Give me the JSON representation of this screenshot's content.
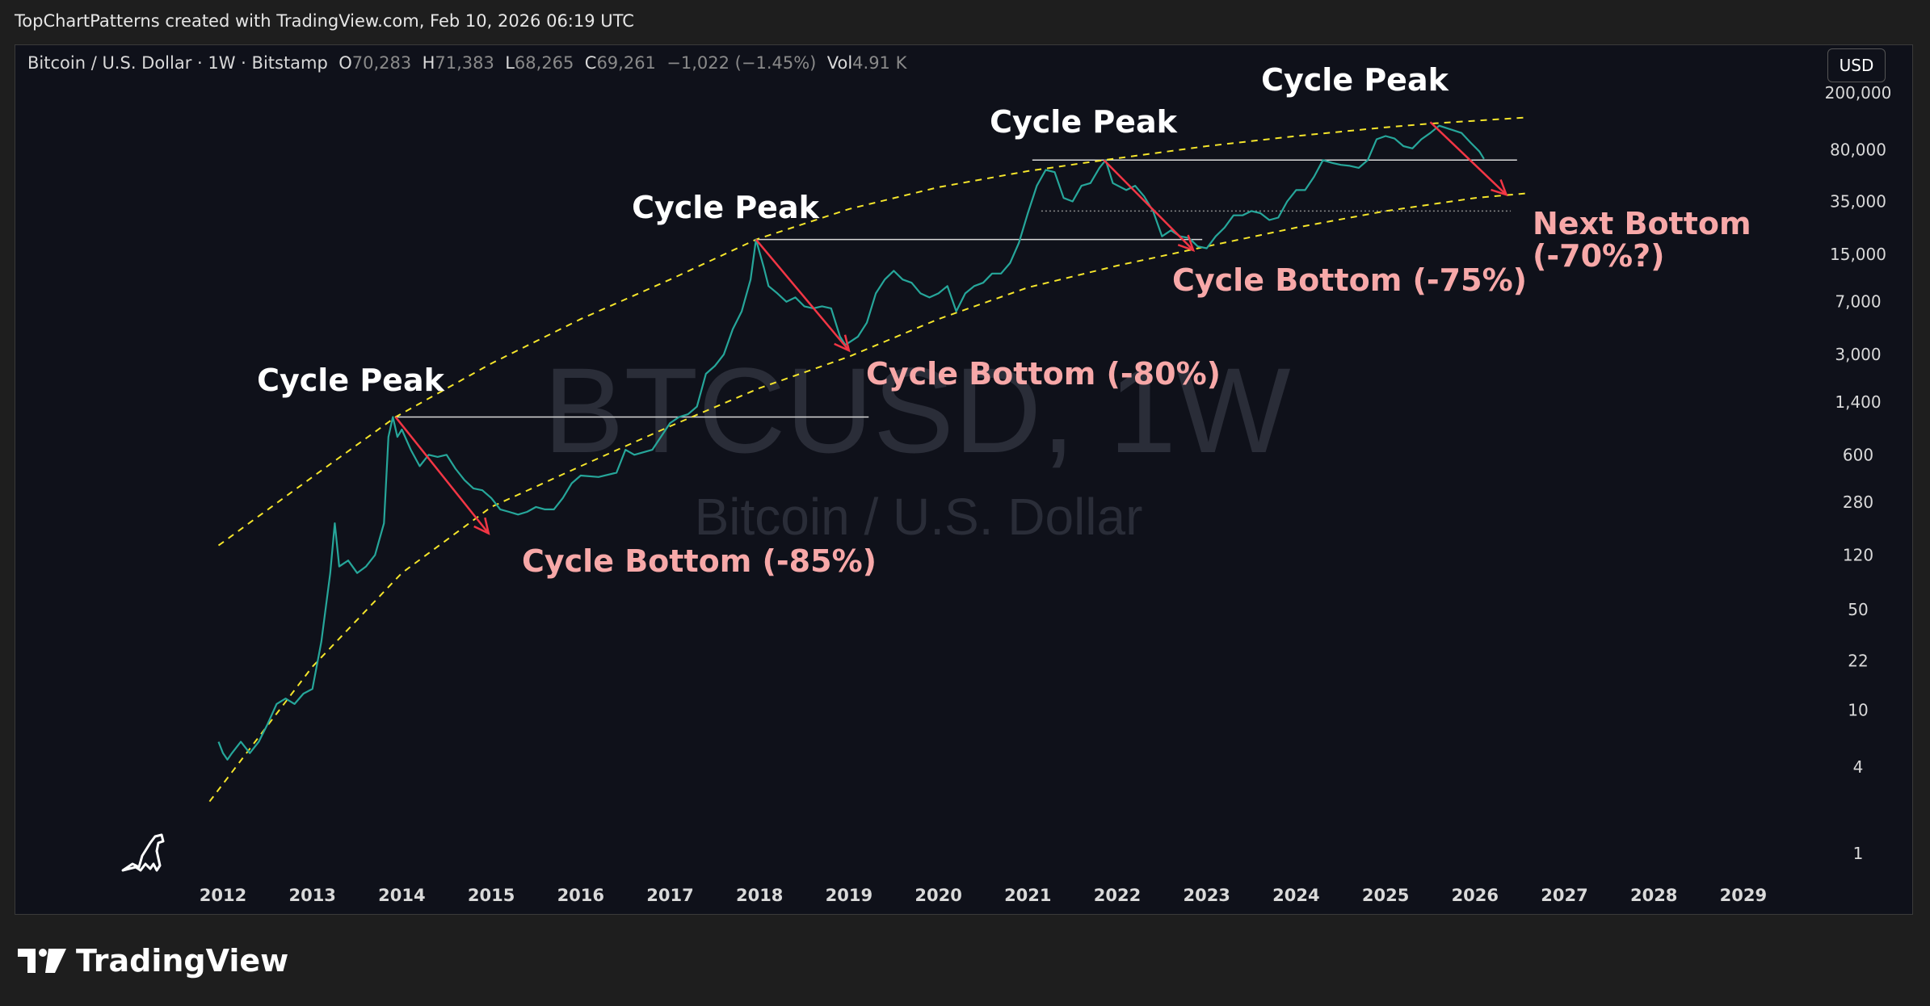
{
  "header": {
    "attribution": "TopChartPatterns created with TradingView.com, Feb 10, 2026 06:19 UTC"
  },
  "legend": {
    "symbol": "Bitcoin / U.S. Dollar · 1W · Bitstamp",
    "open_label": "O",
    "open": "70,283",
    "high_label": "H",
    "high": "71,383",
    "low_label": "L",
    "low": "68,265",
    "close_label": "C",
    "close": "69,261",
    "change": "−1,022 (−1.45%)",
    "vol_label": "Vol",
    "vol": "4.91 K"
  },
  "currency_button": "USD",
  "watermark": {
    "main": "BTCUSD, 1W",
    "sub": "Bitcoin / U.S. Dollar"
  },
  "footer": {
    "brand": "TradingView"
  },
  "colors": {
    "background": "#0f111a",
    "candle": "#26a69a",
    "arrow": "#f23645",
    "band": "#f5e52b",
    "bottom_text": "#f7a8a8"
  },
  "chart_data": {
    "type": "line",
    "y_scale": "log",
    "x_ticks": [
      "2012",
      "2013",
      "2014",
      "2015",
      "2016",
      "2017",
      "2018",
      "2019",
      "2020",
      "2021",
      "2022",
      "2023",
      "2024",
      "2025",
      "2026",
      "2027",
      "2028",
      "2029"
    ],
    "y_ticks": [
      "200,000",
      "80,000",
      "35,000",
      "15,000",
      "7,000",
      "3,000",
      "1,400",
      "600",
      "280",
      "120",
      "50",
      "22",
      "10",
      "4",
      "1"
    ],
    "y_tick_values": [
      200000,
      80000,
      35000,
      15000,
      7000,
      3000,
      1400,
      600,
      280,
      120,
      50,
      22,
      10,
      4,
      1
    ],
    "series": [
      {
        "x": [
          2011.95,
          2012.0,
          2012.05,
          2012.1,
          2012.2,
          2012.3,
          2012.4,
          2012.5,
          2012.6,
          2012.7,
          2012.8,
          2012.9,
          2013.0,
          2013.1,
          2013.2,
          2013.25,
          2013.3,
          2013.4,
          2013.5,
          2013.6,
          2013.7,
          2013.8,
          2013.85,
          2013.9,
          2013.95,
          2014.0,
          2014.1,
          2014.2,
          2014.3,
          2014.4,
          2014.5,
          2014.6,
          2014.7,
          2014.8,
          2014.9,
          2015.0,
          2015.1,
          2015.2,
          2015.3,
          2015.4,
          2015.5,
          2015.6,
          2015.7,
          2015.8,
          2015.9,
          2016.0,
          2016.2,
          2016.4,
          2016.5,
          2016.6,
          2016.8,
          2017.0,
          2017.1,
          2017.2,
          2017.3,
          2017.4,
          2017.5,
          2017.6,
          2017.7,
          2017.8,
          2017.9,
          2017.96,
          2018.05,
          2018.1,
          2018.2,
          2018.3,
          2018.4,
          2018.5,
          2018.6,
          2018.7,
          2018.8,
          2018.9,
          2018.96,
          2019.1,
          2019.2,
          2019.3,
          2019.4,
          2019.5,
          2019.6,
          2019.7,
          2019.8,
          2019.9,
          2020.0,
          2020.1,
          2020.2,
          2020.3,
          2020.4,
          2020.5,
          2020.6,
          2020.7,
          2020.8,
          2020.9,
          2021.0,
          2021.1,
          2021.2,
          2021.3,
          2021.4,
          2021.5,
          2021.6,
          2021.7,
          2021.8,
          2021.87,
          2021.95,
          2022.1,
          2022.2,
          2022.3,
          2022.4,
          2022.5,
          2022.6,
          2022.7,
          2022.8,
          2022.9,
          2023.0,
          2023.1,
          2023.2,
          2023.3,
          2023.4,
          2023.5,
          2023.6,
          2023.7,
          2023.8,
          2023.9,
          2024.0,
          2024.1,
          2024.2,
          2024.3,
          2024.4,
          2024.5,
          2024.6,
          2024.7,
          2024.8,
          2024.9,
          2025.0,
          2025.1,
          2025.2,
          2025.3,
          2025.4,
          2025.5,
          2025.6,
          2025.75,
          2025.85,
          2025.95,
          2026.05,
          2026.1
        ],
        "y": [
          6,
          5,
          4.5,
          5,
          6,
          5,
          6,
          8,
          11,
          12,
          11,
          13,
          14,
          30,
          90,
          200,
          100,
          110,
          90,
          100,
          120,
          200,
          800,
          1100,
          800,
          900,
          650,
          500,
          600,
          580,
          600,
          480,
          400,
          350,
          340,
          300,
          250,
          240,
          230,
          240,
          260,
          250,
          250,
          300,
          380,
          430,
          420,
          450,
          650,
          600,
          650,
          1000,
          1100,
          1150,
          1300,
          2200,
          2500,
          3000,
          4500,
          6000,
          10000,
          19000,
          12000,
          9000,
          8000,
          7000,
          7500,
          6500,
          6300,
          6500,
          6300,
          4000,
          3500,
          4000,
          5000,
          8000,
          10000,
          11500,
          10000,
          9500,
          8000,
          7500,
          8000,
          9000,
          6000,
          8000,
          9000,
          9500,
          11000,
          11000,
          13000,
          18000,
          29000,
          45000,
          58000,
          56000,
          37000,
          35000,
          45000,
          47000,
          60000,
          68000,
          47000,
          42000,
          45000,
          38000,
          30000,
          20000,
          22000,
          20000,
          19500,
          17000,
          16500,
          20000,
          23000,
          28000,
          28000,
          30000,
          29000,
          26000,
          27000,
          35000,
          42000,
          42000,
          52000,
          68000,
          65000,
          63000,
          62000,
          60000,
          68000,
          95000,
          100000,
          96000,
          85000,
          82000,
          95000,
          105000,
          118000,
          110000,
          105000,
          90000,
          78000,
          69261
        ]
      }
    ],
    "annotations": [
      {
        "label": "Cycle Peak",
        "x": 2013.93,
        "y": 1100
      },
      {
        "label": "Cycle Bottom (-85%)",
        "x": 2015.05,
        "y": 170
      },
      {
        "label": "Cycle Peak",
        "x": 2017.96,
        "y": 19000
      },
      {
        "label": "Cycle Bottom (-80%)",
        "x": 2018.96,
        "y": 3200
      },
      {
        "label": "Cycle Peak",
        "x": 2021.85,
        "y": 68000
      },
      {
        "label": "Cycle Bottom (-75%)",
        "x": 2022.85,
        "y": 16000
      },
      {
        "label": "Cycle Peak",
        "x": 2025.5,
        "y": 125000
      },
      {
        "label": "Next Bottom\n(-70%?)",
        "x": 2026.3,
        "y": 37000
      }
    ],
    "bands": [
      {
        "name": "upper",
        "style": "dashed",
        "x": [
          2011.95,
          2013.0,
          2013.93,
          2015.0,
          2016.0,
          2017.0,
          2017.96,
          2019.0,
          2020.0,
          2021.0,
          2021.85,
          2023.0,
          2024.0,
          2025.0,
          2025.5,
          2026.6
        ],
        "y": [
          140,
          420,
          1100,
          2600,
          5300,
          10000,
          19000,
          31000,
          44000,
          57000,
          68000,
          85000,
          100000,
          115000,
          122000,
          135000
        ]
      },
      {
        "name": "lower",
        "style": "dashed",
        "x": [
          2011.85,
          2013.0,
          2014.0,
          2015.0,
          2016.0,
          2017.0,
          2018.0,
          2019.0,
          2020.0,
          2021.0,
          2022.0,
          2023.0,
          2024.0,
          2025.0,
          2026.0,
          2026.6
        ],
        "y": [
          2.3,
          20,
          90,
          260,
          500,
          950,
          1750,
          2900,
          5300,
          8800,
          12500,
          17000,
          23000,
          30000,
          37000,
          40000
        ]
      }
    ],
    "levels": [
      {
        "y": 1100,
        "x0": 2013.93,
        "x1": 2019.22
      },
      {
        "y": 19000,
        "x0": 2017.96,
        "x1": 2022.95
      },
      {
        "y": 68000,
        "x0": 2021.05,
        "x1": 2026.47
      },
      {
        "y": 30000,
        "x0": 2021.15,
        "x1": 2026.4,
        "style": "dotted"
      }
    ],
    "arrows": [
      {
        "x0": 2013.93,
        "y0": 1100,
        "x1": 2014.97,
        "y1": 170
      },
      {
        "x0": 2017.96,
        "y0": 19000,
        "x1": 2019.0,
        "y1": 3200
      },
      {
        "x0": 2021.85,
        "y0": 68000,
        "x1": 2022.85,
        "y1": 16000
      },
      {
        "x0": 2025.5,
        "y0": 125000,
        "x1": 2026.35,
        "y1": 39000
      }
    ]
  }
}
